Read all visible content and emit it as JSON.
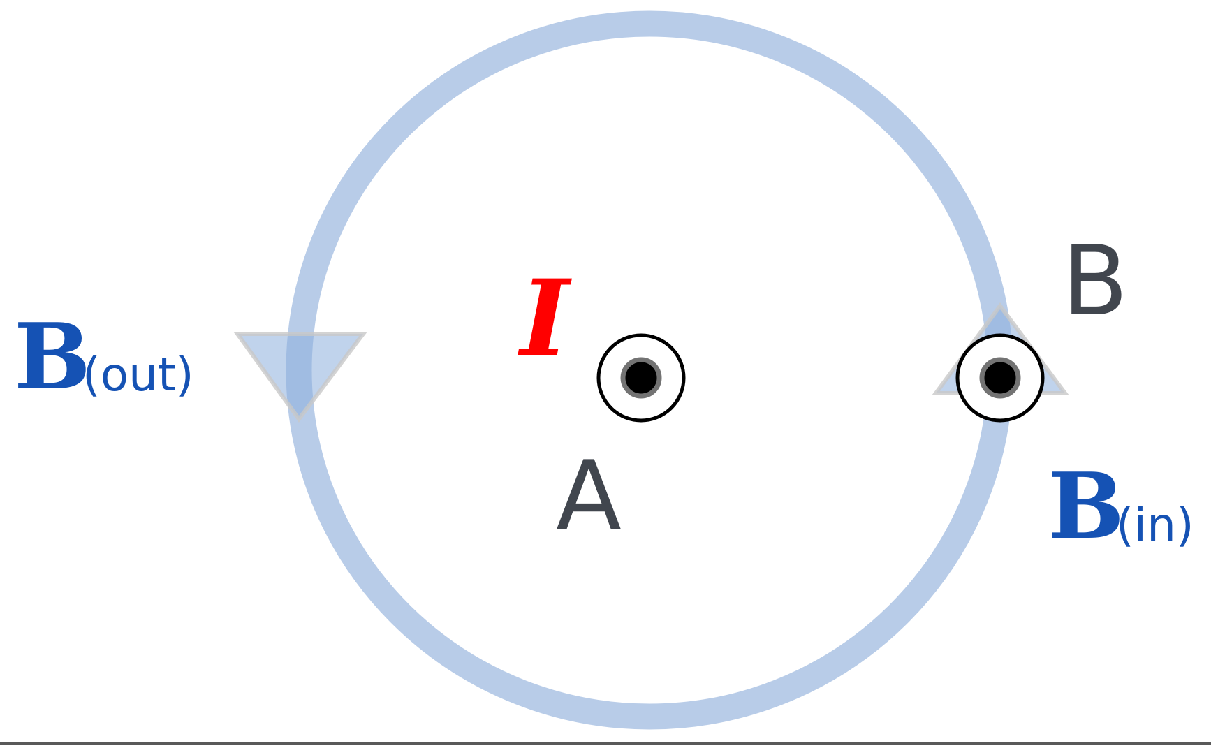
{
  "labels": {
    "current": "I",
    "point_a": "A",
    "point_b": "B",
    "field_left_symbol": "B",
    "field_left_sub": "(out)",
    "field_right_symbol": "B",
    "field_right_sub": "(in)"
  },
  "colors": {
    "loop": "#b8cce8",
    "arrow": "#8caedd",
    "current": "#ff0000",
    "field_label": "#1552b4",
    "point_label": "#41464e",
    "wire_outline": "#000000"
  },
  "icons": {
    "wire_out_of_page": "circle-dot-icon",
    "field_direction_down": "triangle-down-icon",
    "field_direction_up": "triangle-up-icon"
  }
}
